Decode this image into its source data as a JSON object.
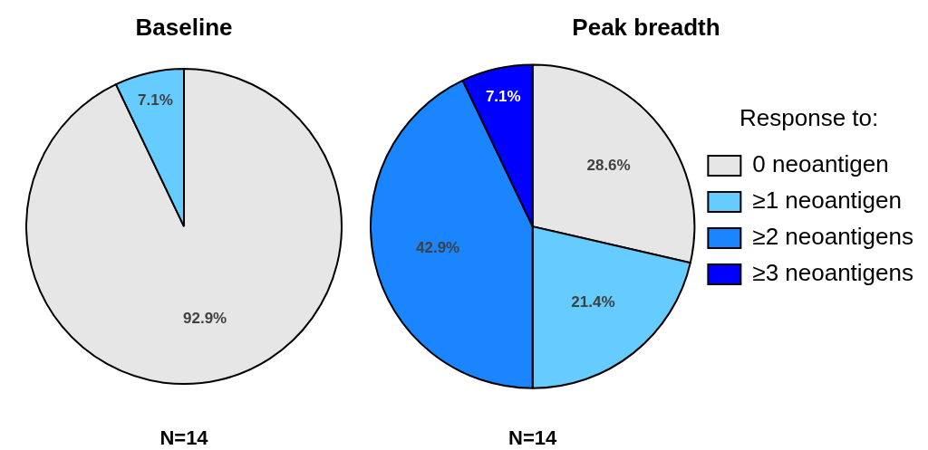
{
  "chart_data": [
    {
      "type": "pie",
      "title": "Baseline",
      "categories": [
        null,
        null
      ],
      "values": [
        92.9,
        7.1
      ],
      "colors": [
        "#e6e6e6",
        "#66ccff"
      ],
      "value_labels": [
        "92.9%",
        "7.1%"
      ],
      "legend": false,
      "annotations": [
        "N=14"
      ]
    },
    {
      "type": "pie",
      "title": "Peak breadth",
      "categories": [
        "0 neoantigen",
        "≥1 neoantigen",
        "≥2 neoantigens",
        "≥3 neoantigens"
      ],
      "values": [
        28.6,
        21.4,
        42.9,
        7.1
      ],
      "colors": [
        "#e6e6e6",
        "#66ccff",
        "#1a85ff",
        "#0000ff"
      ],
      "value_labels": [
        "28.6%",
        "21.4%",
        "42.9%",
        "7.1%"
      ],
      "legend": "right",
      "legend_title": "Response to:",
      "annotations": [
        "N=14"
      ]
    }
  ]
}
